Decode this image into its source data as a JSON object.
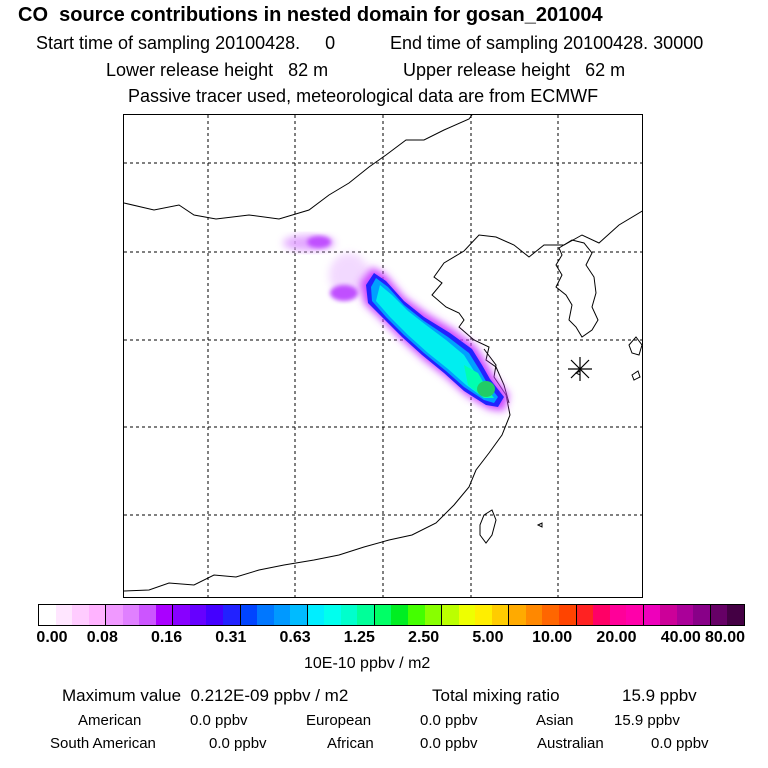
{
  "header": {
    "title": "CO  source contributions in nested domain for gosan_201004",
    "start_time": "Start time of sampling 20100428.     0",
    "end_time": "End time of sampling 20100428. 30000",
    "lower_release": "Lower release height   82 m",
    "upper_release": "Upper release height   62 m",
    "tracer_note": "Passive tracer used, meteorological data are from ECMWF"
  },
  "map": {
    "marker_name": "receptor-station-gosan",
    "plume_max_color": "#22cc66"
  },
  "colorbar": {
    "colors": [
      "#ffffff",
      "#ffe6ff",
      "#ffccff",
      "#ffb3ff",
      "#f099ff",
      "#e080ff",
      "#cc55ff",
      "#aa00ff",
      "#8800ff",
      "#6600ff",
      "#4400ff",
      "#2222ff",
      "#0044ff",
      "#0077ff",
      "#0099ff",
      "#00bbff",
      "#00eeff",
      "#00ffee",
      "#00ffcc",
      "#00ff99",
      "#00ff66",
      "#00ee22",
      "#44ff00",
      "#88ff00",
      "#bbff00",
      "#eeff00",
      "#ffee00",
      "#ffcc00",
      "#ffaa00",
      "#ff8800",
      "#ff6600",
      "#ff4400",
      "#ff2222",
      "#ff0066",
      "#ff0099",
      "#ff00aa",
      "#ee00bb",
      "#cc0099",
      "#aa0099",
      "#880088",
      "#660066",
      "#440044"
    ],
    "tick_labels": [
      "0.00",
      "0.08",
      "0.16",
      "0.31",
      "0.63",
      "1.25",
      "2.50",
      "5.00",
      "10.00",
      "20.00",
      "40.00",
      "80.00"
    ],
    "unit": "10E-10 ppbv / m2"
  },
  "footer": {
    "max_label": "Maximum value  0.212E-09 ppbv / m2",
    "total_label": "Total mixing ratio",
    "total_value": "15.9 ppbv",
    "regions": [
      {
        "name": "American",
        "value": "0.0 ppbv"
      },
      {
        "name": "European",
        "value": "0.0 ppbv"
      },
      {
        "name": "Asian",
        "value": "15.9 ppbv"
      },
      {
        "name": "South American",
        "value": "0.0 ppbv"
      },
      {
        "name": "African",
        "value": "0.0 ppbv"
      },
      {
        "name": "Australian",
        "value": "0.0 ppbv"
      }
    ]
  }
}
